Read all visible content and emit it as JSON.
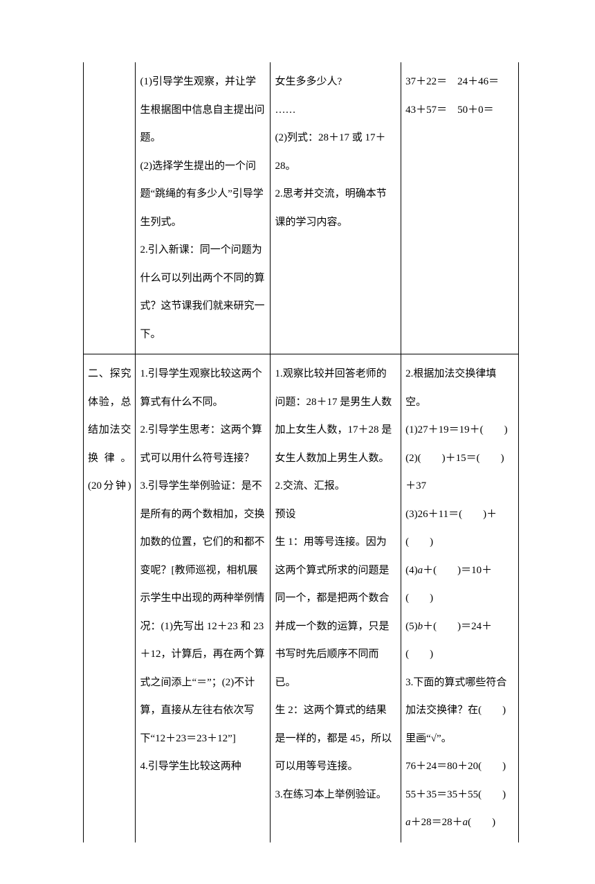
{
  "table": {
    "border_color": "#000000",
    "background_color": "#ffffff",
    "text_color": "#000000",
    "font_size": 15,
    "line_height": 2.7,
    "columns": [
      "col1",
      "col2",
      "col3",
      "col4"
    ],
    "column_widths": [
      "12%",
      "31%",
      "30%",
      "27%"
    ],
    "rows": [
      {
        "cells": [
          {
            "text": ""
          },
          {
            "text": "(1)引导学生观察，并让学生根据图中信息自主提出问题。\n(2)选择学生提出的一个问题“跳绳的有多少人”引导学生列式。\n2.引入新课：同一个问题为什么可以列出两个不同的算式？这节课我们就来研究一下。"
          },
          {
            "text": "女生多多少人?\n……\n(2)列式：28＋17 或 17＋28。\n2.思考并交流，明确本节课的学习内容。"
          },
          {
            "text": "37＋22＝　24＋46＝\n43＋57＝　50＋0＝"
          }
        ],
        "no_top": true
      },
      {
        "cells": [
          {
            "text": "二、探究体验，总结加法交换律。(20分钟)"
          },
          {
            "text": "1.引导学生观察比较这两个算式有什么不同。\n2.引导学生思考：这两个算式可以用什么符号连接？\n3.引导学生举例验证：是不是所有的两个数相加，交换加数的位置，它们的和都不变呢？[教师巡视，相机展示学生中出现的两种举例情况：(1)先写出 12＋23 和 23＋12，计算后，再在两个算式之间添上“＝”；(2)不计算，直接从左往右依次写下“12＋23＝23＋12”]\n4.引导学生比较这两种"
          },
          {
            "text": "1.观察比较并回答老师的问题：28＋17 是男生人数加上女生人数，17＋28 是女生人数加上男生人数。\n2.交流、汇报。\n预设\n生 1：用等号连接。因为这两个算式所求的问题是同一个，都是把两个数合并成一个数的运算，只是书写时先后顺序不同而已。\n生 2：这两个算式的结果是一样的，都是 45，所以可以用等号连接。\n3.在练习本上举例验证。"
          },
          {
            "html": "2.根据加法交换律填空。<br>(1)27＋19＝19＋(　　)<br>(2)(　　)＋15＝(　　)＋37<br>(3)26＋11＝(　　)＋(　　)<br>(4)<span class=\"italic\">a</span>＋(　　)＝10＋(　　)<br>(5)<span class=\"italic\">b</span>＋(　　)＝24＋(　　)<br>3.下面的算式哪些符合加法交换律？在(　　)里画“√”。<br>76＋24＝80＋20(　　)<br>55＋35＝35＋55(　　)<br><span class=\"italic\">a</span>＋28＝28＋<span class=\"italic\">a</span>(　　)"
          }
        ],
        "no_bottom": true
      }
    ]
  }
}
